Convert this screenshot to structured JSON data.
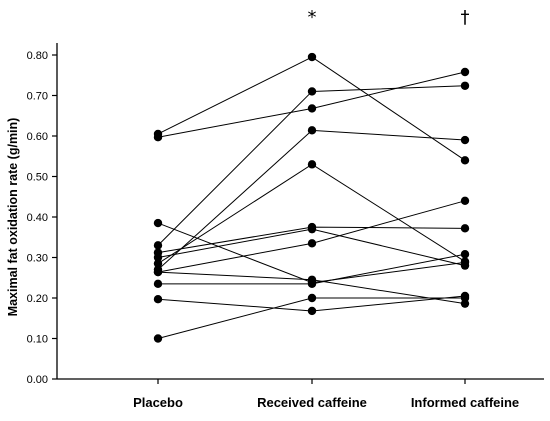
{
  "chart_data": {
    "type": "line",
    "title": "",
    "ylabel": "Maximal fat oxidation rate (g/min)",
    "xlabel": "",
    "categories": [
      "Placebo",
      "Received caffeine",
      "Informed caffeine"
    ],
    "ylim": [
      0,
      0.8
    ],
    "yticks": [
      "0.00",
      "0.10",
      "0.20",
      "0.30",
      "0.40",
      "0.50",
      "0.60",
      "0.70",
      "0.80"
    ],
    "grid": false,
    "legend": "none",
    "annotations": [
      {
        "category": "Received caffeine",
        "text": "*"
      },
      {
        "category": "Informed caffeine",
        "text": "†"
      }
    ],
    "series": [
      {
        "values": [
          0.605,
          0.795,
          0.54
        ]
      },
      {
        "values": [
          0.597,
          0.668,
          0.758
        ]
      },
      {
        "values": [
          0.385,
          0.238,
          0.288
        ]
      },
      {
        "values": [
          0.33,
          0.71,
          0.724
        ]
      },
      {
        "values": [
          0.312,
          0.375,
          0.372
        ]
      },
      {
        "values": [
          0.3,
          0.37,
          0.28
        ]
      },
      {
        "values": [
          0.285,
          0.53,
          0.29
        ]
      },
      {
        "values": [
          0.27,
          0.614,
          0.59
        ]
      },
      {
        "values": [
          0.264,
          0.245,
          0.186
        ]
      },
      {
        "values": [
          0.264,
          0.335,
          0.44
        ]
      },
      {
        "values": [
          0.235,
          0.235,
          0.308
        ]
      },
      {
        "values": [
          0.197,
          0.168,
          0.205
        ]
      },
      {
        "values": [
          0.1,
          0.2,
          0.2
        ]
      }
    ]
  }
}
